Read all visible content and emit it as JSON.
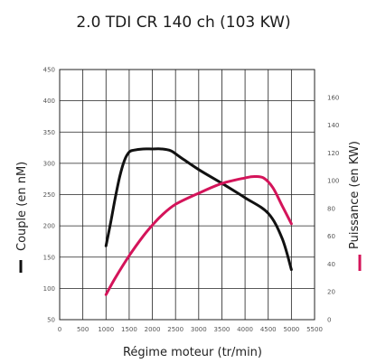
{
  "chart_data": {
    "type": "line",
    "title": "2.0 TDI CR 140 ch (103 KW)",
    "xlabel": "Régime moteur (tr/min)",
    "ylabel_left": "Couple (en nM)",
    "ylabel_right": "Puissance (en KW)",
    "xlim": [
      0,
      5500
    ],
    "ylim_left": [
      50,
      450
    ],
    "ylim_right": [
      0,
      180
    ],
    "x_ticks": [
      0,
      500,
      1000,
      1500,
      2000,
      2500,
      3000,
      3500,
      4000,
      4500,
      5000,
      5500
    ],
    "y_left_ticks": [
      50,
      100,
      150,
      200,
      250,
      300,
      350,
      400,
      450
    ],
    "y_right_ticks": [
      0,
      20,
      40,
      60,
      80,
      100,
      120,
      140,
      160
    ],
    "grid": true,
    "legend_position": "left-and-right-axes",
    "series": [
      {
        "name": "Couple (en nM)",
        "axis": "left",
        "color": "#111111",
        "x": [
          1000,
          1100,
          1200,
          1300,
          1400,
          1500,
          1600,
          1800,
          2000,
          2200,
          2400,
          2600,
          3000,
          3500,
          4000,
          4500,
          4800,
          5000
        ],
        "y": [
          168,
          205,
          245,
          280,
          305,
          318,
          321,
          323,
          323,
          323,
          320,
          310,
          290,
          268,
          245,
          220,
          180,
          130
        ]
      },
      {
        "name": "Puissance (en KW)",
        "axis": "right",
        "color": "#d4145a",
        "x": [
          1000,
          1200,
          1500,
          1800,
          2000,
          2200,
          2500,
          3000,
          3500,
          4000,
          4200,
          4400,
          4600,
          4800,
          5000
        ],
        "y": [
          18,
          30,
          46,
          60,
          68,
          75,
          83,
          91,
          98,
          102,
          103,
          102,
          95,
          82,
          69
        ]
      }
    ]
  }
}
